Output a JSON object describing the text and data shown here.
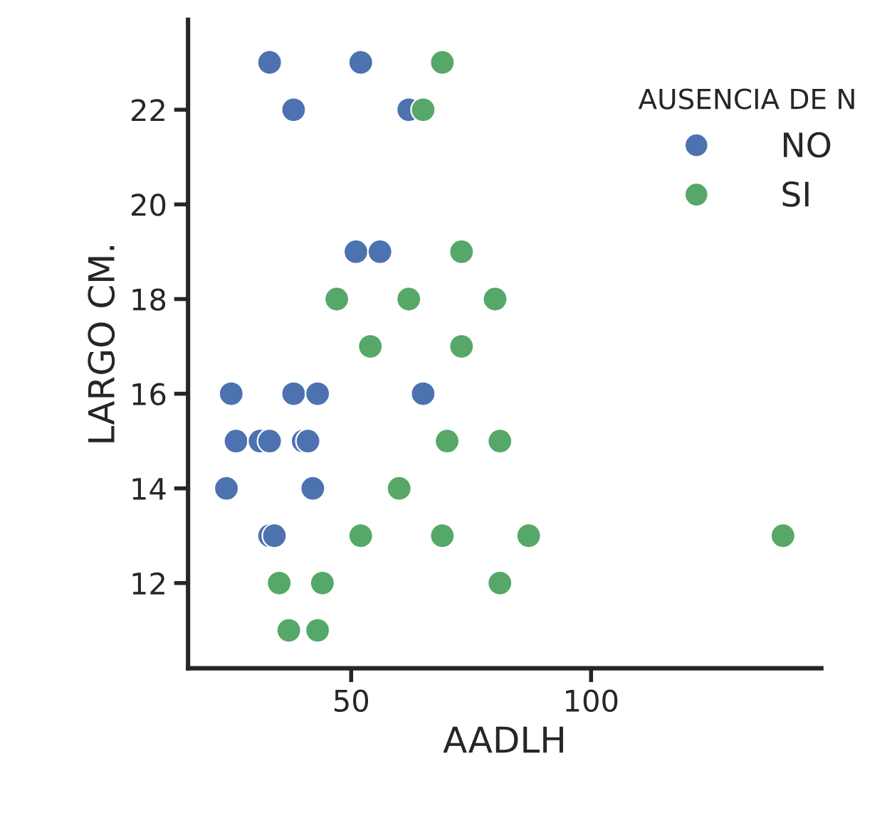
{
  "chart_data": {
    "type": "scatter",
    "xlabel": "AADLH",
    "ylabel": "LARGO CM.",
    "legend_title": "AUSENCIA DE N",
    "legend": "top right",
    "marker": "circle",
    "grid": false,
    "xlim": [
      16,
      148
    ],
    "ylim": [
      10.2,
      23.9
    ],
    "xticks": [
      50,
      100
    ],
    "yticks": [
      12,
      14,
      16,
      18,
      20,
      22
    ],
    "series": [
      {
        "name": "NO",
        "color": "#4c72b0",
        "x": [
          33,
          52,
          38,
          62,
          51,
          56,
          25,
          38,
          43,
          65,
          26,
          31,
          33,
          40,
          41,
          24,
          42,
          33,
          34
        ],
        "values": [
          23,
          23,
          22,
          22,
          19,
          19,
          16,
          16,
          16,
          16,
          15,
          15,
          15,
          15,
          15,
          14,
          14,
          13,
          13
        ]
      },
      {
        "name": "SI",
        "color": "#55a868",
        "x": [
          69,
          65,
          73,
          47,
          62,
          80,
          54,
          73,
          70,
          81,
          60,
          52,
          69,
          87,
          140,
          35,
          44,
          81,
          37,
          43
        ],
        "values": [
          23,
          22,
          19,
          18,
          18,
          18,
          17,
          17,
          15,
          15,
          14,
          13,
          13,
          13,
          13,
          12,
          12,
          12,
          11,
          11
        ]
      }
    ]
  }
}
